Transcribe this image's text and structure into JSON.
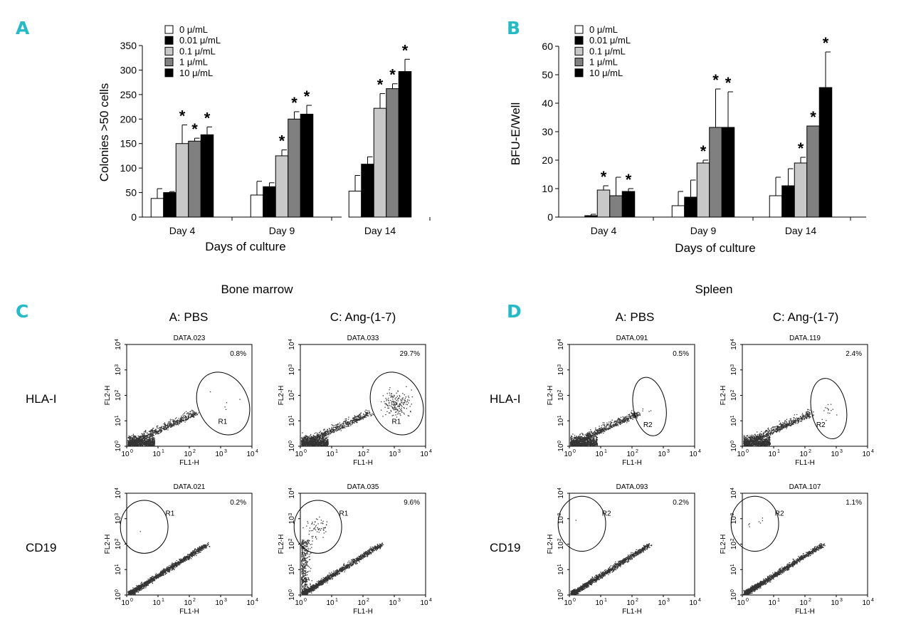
{
  "figure": {
    "panel_letters": [
      "A",
      "B",
      "C",
      "D"
    ],
    "tissues": [
      "Bone marrow",
      "Spleen"
    ],
    "treatments": [
      "A: PBS",
      "C: Ang-(1-7)"
    ],
    "row_labels": [
      "HLA-I",
      "CD19"
    ],
    "flow_axes": {
      "x_label": "FL1-H",
      "y_label": "FL2-H",
      "tick_base": "10",
      "tick_exponents": [
        "0",
        "1",
        "2",
        "3",
        "4"
      ]
    }
  },
  "colors": {
    "accent": "#26b9c6",
    "series": [
      "#ffffff",
      "#000000",
      "#c8c8c8",
      "#808080",
      "#000000"
    ],
    "dots": "#333333"
  },
  "chart_data": [
    {
      "id": "A",
      "type": "bar",
      "categories": [
        "Day 4",
        "Day 9",
        "Day 14"
      ],
      "xlabel": "Days of culture",
      "ylabel": "Colonies >50 cells",
      "ylim": [
        0,
        350
      ],
      "yticks": [
        0,
        50,
        100,
        150,
        200,
        250,
        300,
        350
      ],
      "legend": "top-left",
      "series": [
        {
          "name": "0 μ/mL",
          "values": [
            38,
            45,
            53
          ],
          "errors": [
            20,
            28,
            32
          ],
          "sig": [
            false,
            false,
            false
          ]
        },
        {
          "name": "0.01 μ/mL",
          "values": [
            50,
            62,
            108
          ],
          "errors": [
            2,
            8,
            15
          ],
          "sig": [
            false,
            false,
            false
          ]
        },
        {
          "name": "0.1 μ/mL",
          "values": [
            150,
            125,
            222
          ],
          "errors": [
            38,
            12,
            30
          ],
          "sig": [
            true,
            true,
            true
          ]
        },
        {
          "name": "1 μ/mL",
          "values": [
            155,
            200,
            262
          ],
          "errors": [
            6,
            15,
            10
          ],
          "sig": [
            true,
            true,
            true
          ]
        },
        {
          "name": "10 μ/mL",
          "values": [
            168,
            210,
            297
          ],
          "errors": [
            16,
            18,
            25
          ],
          "sig": [
            true,
            true,
            true
          ]
        }
      ]
    },
    {
      "id": "B",
      "type": "bar",
      "categories": [
        "Day 4",
        "Day 9",
        "Day 14"
      ],
      "xlabel": "Days of culture",
      "ylabel": "BFU-E/Well",
      "ylim": [
        0,
        60
      ],
      "yticks": [
        0,
        10,
        20,
        30,
        40,
        50,
        60
      ],
      "legend": "top-left",
      "series": [
        {
          "name": "0 μ/mL",
          "values": [
            0,
            4,
            7.5
          ],
          "errors": [
            0,
            5,
            6.5
          ],
          "sig": [
            false,
            false,
            false
          ]
        },
        {
          "name": "0.01 μ/mL",
          "values": [
            0.5,
            7,
            11
          ],
          "errors": [
            0.5,
            6,
            6
          ],
          "sig": [
            false,
            false,
            false
          ]
        },
        {
          "name": "0.1 μ/mL",
          "values": [
            9.5,
            19,
            19
          ],
          "errors": [
            1.5,
            1,
            2
          ],
          "sig": [
            true,
            true,
            true
          ]
        },
        {
          "name": "1 μ/mL",
          "values": [
            7.5,
            31.5,
            32
          ],
          "errors": [
            6.5,
            13.5,
            0
          ],
          "sig": [
            false,
            true,
            true
          ]
        },
        {
          "name": "10 μ/mL",
          "values": [
            9,
            31.5,
            45.5
          ],
          "errors": [
            1,
            12.5,
            12.5
          ],
          "sig": [
            true,
            true,
            true
          ]
        }
      ]
    },
    {
      "id": "C",
      "type": "scatter",
      "title": "Bone marrow",
      "plots": [
        {
          "file": "DATA.023",
          "percent": "0.8%",
          "gate": "R1",
          "marker": "HLA-I",
          "treatment": "A: PBS"
        },
        {
          "file": "DATA.033",
          "percent": "29.7%",
          "gate": "R1",
          "marker": "HLA-I",
          "treatment": "C: Ang-(1-7)"
        },
        {
          "file": "DATA.021",
          "percent": "0.2%",
          "gate": "R1",
          "marker": "CD19",
          "treatment": "A: PBS"
        },
        {
          "file": "DATA.035",
          "percent": "9.6%",
          "gate": "R1",
          "marker": "CD19",
          "treatment": "C: Ang-(1-7)"
        }
      ]
    },
    {
      "id": "D",
      "type": "scatter",
      "title": "Spleen",
      "plots": [
        {
          "file": "DATA.091",
          "percent": "0.5%",
          "gate": "R2",
          "marker": "HLA-I",
          "treatment": "A: PBS"
        },
        {
          "file": "DATA.119",
          "percent": "2.4%",
          "gate": "R2",
          "marker": "HLA-I",
          "treatment": "C: Ang-(1-7)"
        },
        {
          "file": "DATA.093",
          "percent": "0.2%",
          "gate": "R2",
          "marker": "CD19",
          "treatment": "A: PBS"
        },
        {
          "file": "DATA.107",
          "percent": "1.1%",
          "gate": "R2",
          "marker": "CD19",
          "treatment": "C: Ang-(1-7)"
        }
      ]
    }
  ]
}
